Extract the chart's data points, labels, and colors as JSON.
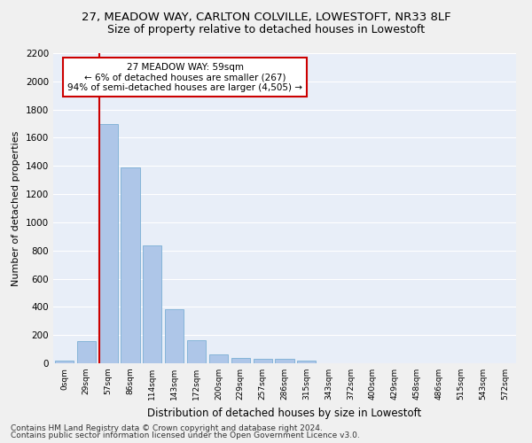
{
  "title1": "27, MEADOW WAY, CARLTON COLVILLE, LOWESTOFT, NR33 8LF",
  "title2": "Size of property relative to detached houses in Lowestoft",
  "xlabel": "Distribution of detached houses by size in Lowestoft",
  "ylabel": "Number of detached properties",
  "bar_labels": [
    "0sqm",
    "29sqm",
    "57sqm",
    "86sqm",
    "114sqm",
    "143sqm",
    "172sqm",
    "200sqm",
    "229sqm",
    "257sqm",
    "286sqm",
    "315sqm",
    "343sqm",
    "372sqm",
    "400sqm",
    "429sqm",
    "458sqm",
    "486sqm",
    "515sqm",
    "543sqm",
    "572sqm"
  ],
  "bar_values": [
    20,
    155,
    1700,
    1390,
    835,
    385,
    165,
    65,
    35,
    30,
    30,
    20,
    0,
    0,
    0,
    0,
    0,
    0,
    0,
    0,
    0
  ],
  "bar_color": "#aec6e8",
  "bar_edge_color": "#7aafd4",
  "red_line_index": 2,
  "annotation_text": "27 MEADOW WAY: 59sqm\n← 6% of detached houses are smaller (267)\n94% of semi-detached houses are larger (4,505) →",
  "annotation_box_color": "#ffffff",
  "annotation_box_edge": "#cc0000",
  "ylim": [
    0,
    2200
  ],
  "yticks": [
    0,
    200,
    400,
    600,
    800,
    1000,
    1200,
    1400,
    1600,
    1800,
    2000,
    2200
  ],
  "footnote1": "Contains HM Land Registry data © Crown copyright and database right 2024.",
  "footnote2": "Contains public sector information licensed under the Open Government Licence v3.0.",
  "bg_color": "#e8eef8",
  "grid_color": "#ffffff",
  "title1_fontsize": 9.5,
  "title2_fontsize": 9,
  "xlabel_fontsize": 8.5,
  "ylabel_fontsize": 8,
  "footnote_fontsize": 6.5
}
